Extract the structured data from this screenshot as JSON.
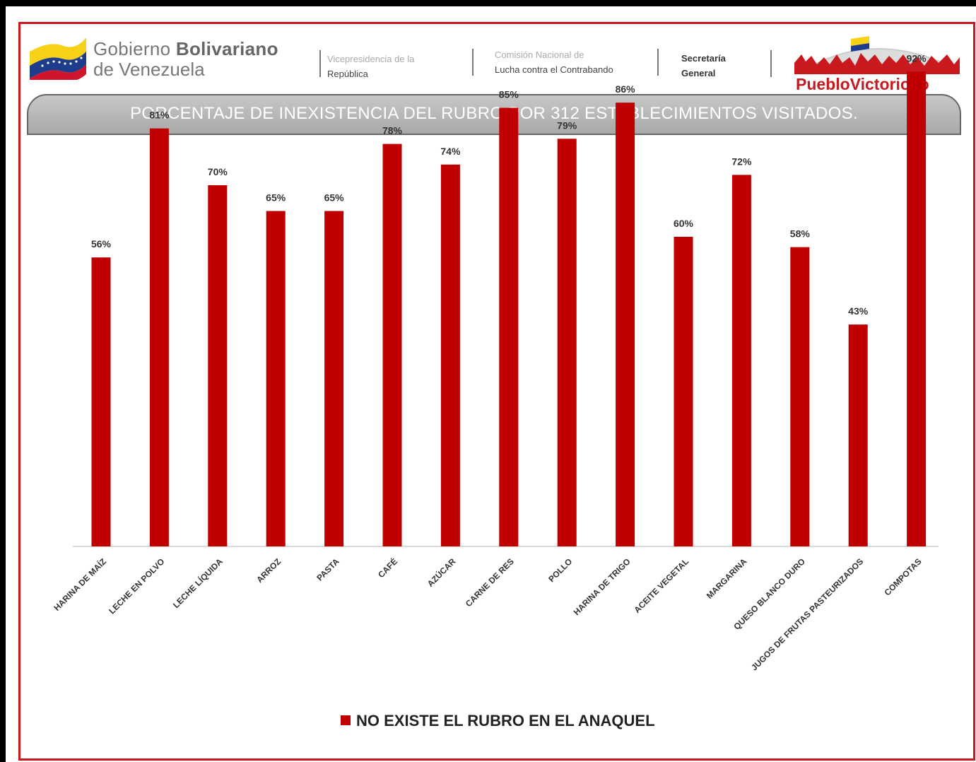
{
  "header": {
    "gov_word1": "Gobierno",
    "gov_word2": "Bolivariano",
    "gov_line2": "de Venezuela",
    "vice_line1": "Vicepresidencia de la",
    "vice_line2": "República",
    "comision_line1": "Comisión Nacional de",
    "comision_line2": "Lucha contra el Contrabando",
    "secretaria_line1": "Secretaría",
    "secretaria_line2": "General",
    "logo_word1": "Pueblo",
    "logo_word2": "Victorioso"
  },
  "colors": {
    "bar": "#c00000",
    "accent": "#c8191f",
    "flag_yellow": "#f7d117",
    "flag_blue": "#1e3c8c",
    "flag_red": "#cf142b"
  },
  "chart_data": {
    "type": "bar",
    "title": "PORCENTAJE DE INEXISTENCIA DEL RUBRO POR 312 ESTABLECIMIENTOS VISITADOS.",
    "categories": [
      "HARINA DE MAÍZ",
      "LECHE EN POLVO",
      "LECHE LÍQUIDA",
      "ARROZ",
      "PASTA",
      "CAFÉ",
      "AZÚCAR",
      "CARNE DE RES",
      "POLLO",
      "HARINA DE TRIGO",
      "ACEITE VEGETAL",
      "MARGARINA",
      "QUESO BLANCO DURO",
      "JUGOS DE FRUTAS PASTEURIZADOS",
      "COMPOTAS"
    ],
    "series": [
      {
        "name": "NO EXISTE EL RUBRO EN EL ANAQUEL",
        "values": [
          56,
          81,
          70,
          65,
          65,
          78,
          74,
          85,
          79,
          86,
          60,
          72,
          58,
          43,
          92
        ],
        "labels": [
          "56%",
          "81%",
          "70%",
          "65%",
          "65%",
          "78%",
          "74%",
          "85%",
          "79%",
          "86%",
          "60%",
          "72%",
          "58%",
          "43%",
          "92%"
        ]
      }
    ],
    "ylim": [
      0,
      100
    ],
    "grid": false,
    "legend": "bottom"
  }
}
